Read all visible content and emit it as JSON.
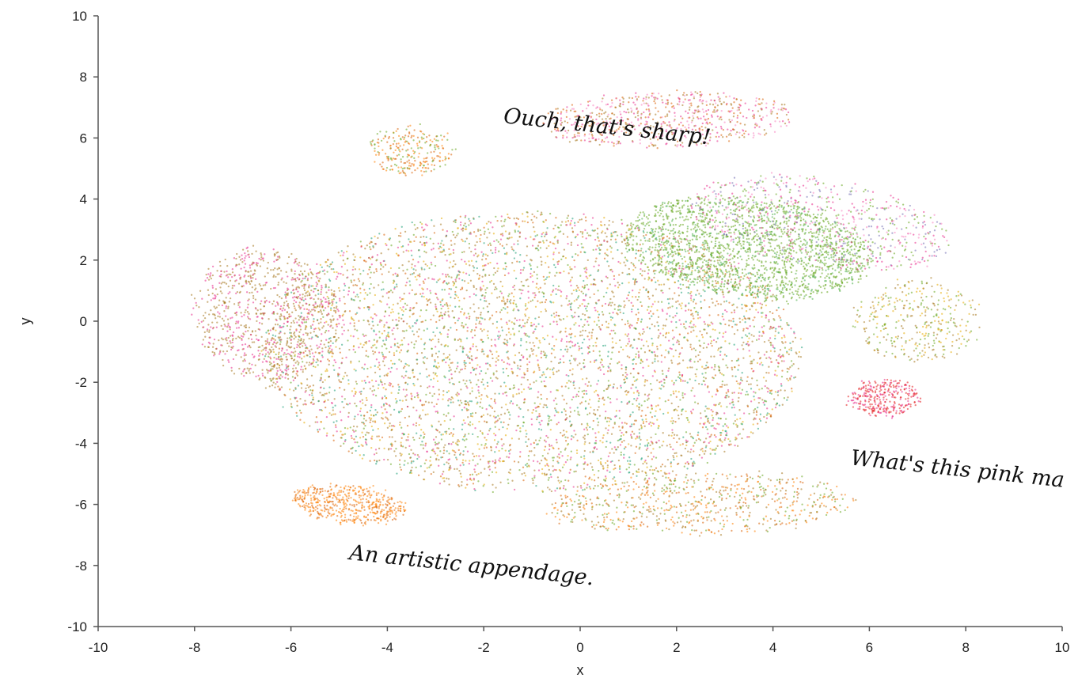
{
  "chart_data": {
    "type": "scatter",
    "title": "",
    "xlabel": "x",
    "ylabel": "y",
    "xlim": [
      -10,
      10
    ],
    "ylim": [
      -10,
      10
    ],
    "x_ticks": [
      -10,
      -8,
      -6,
      -4,
      -2,
      0,
      2,
      4,
      6,
      8,
      10
    ],
    "y_ticks": [
      -10,
      -8,
      -6,
      -4,
      -2,
      0,
      2,
      4,
      6,
      8,
      10
    ],
    "grid": false,
    "legend": "none",
    "colors": [
      "#66a61e",
      "#e6ab02",
      "#a6761d",
      "#e7298a",
      "#d95f02",
      "#1b9e77",
      "#7570b3",
      "#e41a1c",
      "#ff7f00",
      "#4daf4a",
      "#f781bf",
      "#377eb8"
    ],
    "annotations": [
      {
        "text": "Ouch, that's sharp!",
        "x": -1.6,
        "y": 6.5,
        "rotate": 6
      },
      {
        "text": "What's this pink ma",
        "x": 5.6,
        "y": -4.7,
        "rotate": 6
      },
      {
        "text": "An artistic appendage.",
        "x": -4.8,
        "y": -7.8,
        "rotate": 6
      }
    ]
  }
}
